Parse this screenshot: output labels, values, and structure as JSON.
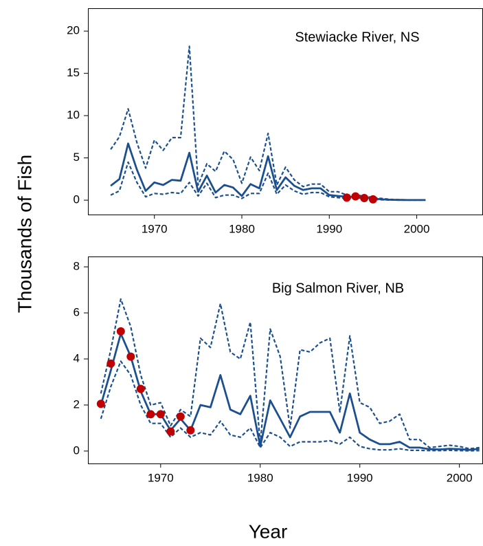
{
  "ylabel": "Thousands of Fish",
  "xlabel": "Year",
  "chart_data": [
    {
      "type": "line",
      "title": "Stewiacke River, NS",
      "x": [
        1965,
        1966,
        1967,
        1968,
        1969,
        1970,
        1971,
        1972,
        1973,
        1974,
        1975,
        1976,
        1977,
        1978,
        1979,
        1980,
        1981,
        1982,
        1983,
        1984,
        1985,
        1986,
        1987,
        1988,
        1989,
        1990,
        1991,
        1992,
        1993,
        1994,
        1995,
        1996,
        1997,
        1998,
        1999,
        2000,
        2001
      ],
      "xlim": [
        1962.4,
        2007.5
      ],
      "xticks": [
        1970,
        1980,
        1990,
        2000
      ],
      "ylim": [
        -1.7,
        22.7
      ],
      "yticks": [
        0,
        5,
        10,
        15,
        20
      ],
      "series": [
        {
          "style": "solid",
          "color": "#1b4f8e",
          "values": [
            1.7,
            2.5,
            6.7,
            3.6,
            1.1,
            2.1,
            1.8,
            2.4,
            2.3,
            5.6,
            1.0,
            2.9,
            0.9,
            1.8,
            1.5,
            0.5,
            1.9,
            1.4,
            5.2,
            1.2,
            2.7,
            1.7,
            1.2,
            1.4,
            1.4,
            0.6,
            0.5,
            0.4,
            0.4,
            0.3,
            0.2,
            0.1,
            0.05,
            0.03,
            0.02,
            0.02,
            0.02
          ]
        },
        {
          "style": "dashed",
          "color": "#1b4f8e",
          "values": [
            6.0,
            7.5,
            10.8,
            6.8,
            3.8,
            7.1,
            5.9,
            7.4,
            7.4,
            18.2,
            1.8,
            4.3,
            3.4,
            5.8,
            4.8,
            2.0,
            5.1,
            3.5,
            7.9,
            1.8,
            3.9,
            2.4,
            1.6,
            1.9,
            1.9,
            1.0,
            1.0,
            0.6,
            0.6,
            0.5,
            0.3,
            0.2,
            0.1,
            0.05,
            0.04,
            0.04,
            0.03
          ]
        },
        {
          "style": "dashed",
          "color": "#1b4f8e",
          "values": [
            0.6,
            1.1,
            4.5,
            2.1,
            0.4,
            0.8,
            0.7,
            0.9,
            0.8,
            2.1,
            0.5,
            2.0,
            0.3,
            0.6,
            0.6,
            0.2,
            0.8,
            0.8,
            3.2,
            0.7,
            1.8,
            1.1,
            0.7,
            0.9,
            0.9,
            0.4,
            0.3,
            0.2,
            0.3,
            0.2,
            0.1,
            0.05,
            0.02,
            0.01,
            0.01,
            0.01,
            0.01
          ]
        },
        {
          "style": "points",
          "color": "#c00000",
          "values": [
            null,
            null,
            null,
            null,
            null,
            null,
            null,
            null,
            null,
            null,
            null,
            null,
            null,
            null,
            null,
            null,
            null,
            null,
            null,
            null,
            null,
            null,
            null,
            null,
            null,
            null,
            null,
            0.3,
            0.45,
            0.25,
            0.1,
            null,
            null,
            null,
            null,
            null,
            null
          ]
        }
      ]
    },
    {
      "type": "line",
      "title": "Big Salmon River, NB",
      "x": [
        1964,
        1965,
        1966,
        1967,
        1968,
        1969,
        1970,
        1971,
        1972,
        1973,
        1974,
        1975,
        1976,
        1977,
        1978,
        1979,
        1980,
        1981,
        1982,
        1983,
        1984,
        1985,
        1986,
        1987,
        1988,
        1989,
        1990,
        1991,
        1992,
        1993,
        1994,
        1995,
        1996,
        1997,
        1998,
        1999,
        2000,
        2001,
        2002
      ],
      "xlim": [
        1962.7,
        2002.3
      ],
      "xticks": [
        1970,
        1980,
        1990,
        2000
      ],
      "ylim": [
        -0.54,
        8.45
      ],
      "yticks": [
        0,
        2,
        4,
        6,
        8
      ],
      "series": [
        {
          "style": "solid",
          "color": "#1b4f8e",
          "values": [
            2.0,
            3.5,
            5.1,
            4.1,
            2.6,
            1.6,
            1.6,
            0.9,
            1.4,
            0.9,
            2.0,
            1.9,
            3.3,
            1.8,
            1.6,
            2.4,
            0.2,
            2.2,
            1.4,
            0.6,
            1.5,
            1.7,
            1.7,
            1.7,
            0.8,
            2.5,
            0.8,
            0.5,
            0.3,
            0.3,
            0.4,
            0.15,
            0.15,
            0.08,
            0.07,
            0.1,
            0.08,
            0.05,
            0.1
          ]
        },
        {
          "style": "dashed",
          "color": "#1b4f8e",
          "values": [
            2.5,
            4.4,
            6.6,
            5.4,
            3.3,
            2.0,
            2.1,
            1.1,
            1.8,
            1.5,
            4.9,
            4.5,
            6.4,
            4.3,
            4.0,
            5.6,
            0.3,
            5.3,
            4.1,
            1.0,
            4.4,
            4.3,
            4.7,
            4.9,
            1.7,
            5.0,
            2.1,
            1.9,
            1.2,
            1.3,
            1.6,
            0.5,
            0.5,
            0.15,
            0.2,
            0.25,
            0.2,
            0.1,
            0.15
          ]
        },
        {
          "style": "dashed",
          "color": "#1b4f8e",
          "values": [
            1.4,
            2.8,
            3.9,
            3.3,
            2.0,
            1.2,
            1.2,
            0.6,
            1.0,
            0.6,
            0.8,
            0.7,
            1.3,
            0.7,
            0.6,
            1.0,
            0.15,
            0.8,
            0.6,
            0.2,
            0.4,
            0.4,
            0.4,
            0.45,
            0.3,
            0.6,
            0.2,
            0.1,
            0.05,
            0.05,
            0.1,
            0.03,
            0.03,
            0.02,
            0.02,
            0.03,
            0.02,
            0.01,
            0.02
          ]
        },
        {
          "style": "points",
          "color": "#c00000",
          "values": [
            2.05,
            3.8,
            5.2,
            4.1,
            2.7,
            1.6,
            1.6,
            0.85,
            1.5,
            0.9,
            null,
            null,
            null,
            null,
            null,
            null,
            null,
            null,
            null,
            null,
            null,
            null,
            null,
            null,
            null,
            null,
            null,
            null,
            null,
            null,
            null,
            null,
            null,
            null,
            null,
            null,
            null,
            null,
            null
          ]
        }
      ]
    }
  ]
}
